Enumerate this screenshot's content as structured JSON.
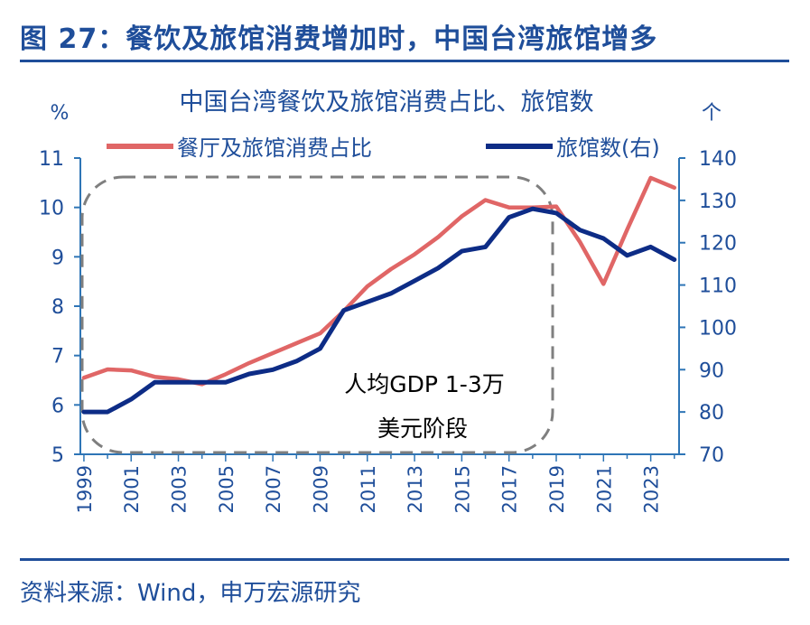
{
  "figure_title": "图 27：餐饮及旅馆消费增加时，中国台湾旅馆增多",
  "source_note": "资料来源：Wind，申万宏源研究",
  "chart_data": {
    "type": "line",
    "title": "中国台湾餐饮及旅馆消费占比、旅馆数",
    "ylabel_left": "%",
    "ylabel_right": "个",
    "x": [
      1999,
      2000,
      2001,
      2002,
      2003,
      2004,
      2005,
      2006,
      2007,
      2008,
      2009,
      2010,
      2011,
      2012,
      2013,
      2014,
      2015,
      2016,
      2017,
      2018,
      2019,
      2020,
      2021,
      2022,
      2023,
      2024
    ],
    "x_tick_labels": [
      "1999",
      "2001",
      "2003",
      "2005",
      "2007",
      "2009",
      "2011",
      "2013",
      "2015",
      "2017",
      "2019",
      "2021",
      "2023"
    ],
    "y_left": {
      "ylim": [
        5,
        11
      ],
      "ticks": [
        "5",
        "6",
        "7",
        "8",
        "9",
        "10",
        "11"
      ]
    },
    "y_right": {
      "ylim": [
        70,
        140
      ],
      "ticks": [
        "70",
        "80",
        "90",
        "100",
        "110",
        "120",
        "130",
        "140"
      ]
    },
    "series": [
      {
        "name": "餐厅及旅馆消费占比",
        "axis": "left",
        "color": "#e06666",
        "x": [
          1999,
          2000,
          2001,
          2002,
          2003,
          2004,
          2005,
          2006,
          2007,
          2008,
          2009,
          2010,
          2011,
          2012,
          2013,
          2014,
          2015,
          2016,
          2017,
          2018,
          2019,
          2020,
          2021,
          2022,
          2023,
          2024
        ],
        "values": [
          6.55,
          6.72,
          6.7,
          6.57,
          6.52,
          6.42,
          6.62,
          6.85,
          7.05,
          7.25,
          7.45,
          7.9,
          8.4,
          8.75,
          9.05,
          9.4,
          9.82,
          10.15,
          10.0,
          10.0,
          10.02,
          9.3,
          8.45,
          9.55,
          10.6,
          10.4
        ]
      },
      {
        "name": "旅馆数(右)",
        "axis": "right",
        "color": "#0d2c86",
        "x": [
          1999,
          2000,
          2001,
          2002,
          2003,
          2004,
          2005,
          2006,
          2007,
          2008,
          2009,
          2010,
          2011,
          2012,
          2013,
          2014,
          2015,
          2016,
          2017,
          2018,
          2019,
          2020,
          2021,
          2022,
          2023,
          2024
        ],
        "values": [
          80,
          80,
          83,
          87,
          87,
          87,
          87,
          89,
          90,
          92,
          95,
          104,
          106,
          108,
          111,
          114,
          118,
          119,
          126,
          128,
          127,
          123,
          121,
          117,
          119,
          116
        ]
      }
    ],
    "annotation": {
      "line1": "人均GDP 1-3万",
      "line2": "美元阶段",
      "x_range": [
        1999,
        2019
      ],
      "style": "dashed rounded box"
    },
    "legend_position": "top",
    "grid": false
  }
}
